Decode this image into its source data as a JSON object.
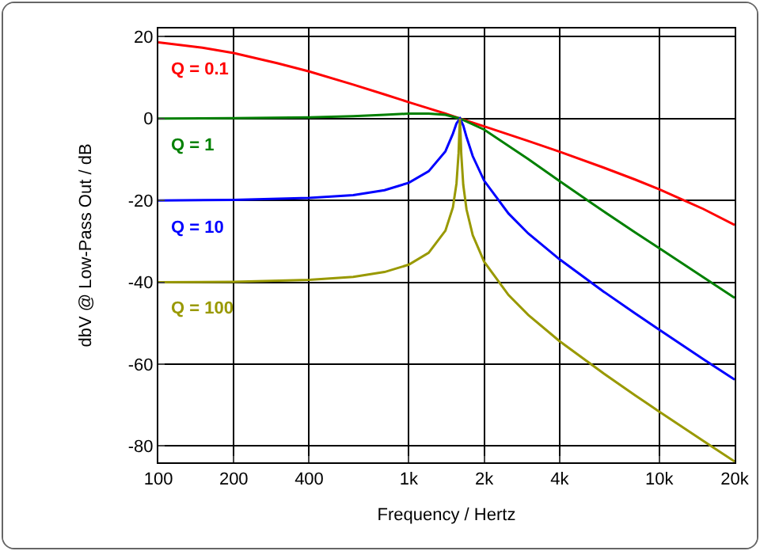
{
  "chart_data": {
    "type": "line",
    "xlabel": "Frequency / Hertz",
    "ylabel": "dbV @ Low-Pass Out / dB",
    "log": "x",
    "xlim": [
      100,
      20000
    ],
    "xticks": [
      100,
      200,
      400,
      {
        "value": 1000,
        "label": "1k"
      },
      {
        "value": 2000,
        "label": "2k"
      },
      {
        "value": 4000,
        "label": "4k"
      },
      {
        "value": 10000,
        "label": "10k"
      },
      {
        "value": 20000,
        "label": "20k"
      }
    ],
    "ylim": [
      -84,
      22
    ],
    "yticks": [
      -80,
      -60,
      -40,
      -20,
      0,
      20
    ],
    "grid": true,
    "legend": false,
    "marker": "none",
    "line_style": "solid",
    "series": [
      {
        "name": "Q = 0.1",
        "color": "#ff0000",
        "x": [
          100,
          150,
          200,
          300,
          400,
          600,
          800,
          1000,
          1200,
          1400,
          1600,
          2000,
          3000,
          4000,
          6000,
          8000,
          10000,
          15000,
          20000
        ],
        "values": [
          18.6,
          17.3,
          16.0,
          13.5,
          11.5,
          8.3,
          5.9,
          4.0,
          2.5,
          1.2,
          0,
          -1.9,
          -5.5,
          -8.1,
          -12.0,
          -14.9,
          -17.3,
          -22.1,
          -26.0
        ]
      },
      {
        "name": "Q = 1",
        "color": "#008000",
        "x": [
          100,
          200,
          400,
          600,
          800,
          1000,
          1200,
          1400,
          1600,
          2000,
          3000,
          4000,
          6000,
          8000,
          10000,
          15000,
          20000
        ],
        "values": [
          0.0,
          0.1,
          0.3,
          0.6,
          0.9,
          1.2,
          1.2,
          0.9,
          0,
          -2.7,
          -9.9,
          -15.3,
          -22.7,
          -27.8,
          -31.7,
          -38.8,
          -43.8
        ]
      },
      {
        "name": "Q = 10",
        "color": "#0000ff",
        "x": [
          100,
          200,
          400,
          600,
          800,
          1000,
          1200,
          1400,
          1500,
          1550,
          1600,
          1650,
          1700,
          1800,
          2000,
          2500,
          3000,
          4000,
          6000,
          8000,
          10000,
          15000,
          20000
        ],
        "values": [
          -20.0,
          -19.9,
          -19.4,
          -18.7,
          -17.5,
          -15.7,
          -12.9,
          -8.0,
          -3.7,
          -1.2,
          0,
          -1.7,
          -4.5,
          -9.2,
          -15.2,
          -23.2,
          -28.1,
          -34.4,
          -42.3,
          -47.6,
          -51.6,
          -58.8,
          -63.8
        ]
      },
      {
        "name": "Q = 100",
        "color": "#999900",
        "x": [
          100,
          200,
          400,
          600,
          800,
          1000,
          1200,
          1400,
          1500,
          1550,
          1580,
          1590,
          1600,
          1610,
          1620,
          1650,
          1700,
          1800,
          2000,
          2500,
          3000,
          4000,
          6000,
          8000,
          10000,
          15000,
          20000
        ],
        "values": [
          -40.0,
          -39.9,
          -39.4,
          -38.7,
          -37.5,
          -35.7,
          -32.8,
          -27.4,
          -21.7,
          -15.9,
          -8.5,
          -4.0,
          0,
          -4.1,
          -8.7,
          -16.2,
          -22.2,
          -28.5,
          -35.0,
          -43.1,
          -48.0,
          -54.4,
          -62.3,
          -67.6,
          -71.6,
          -78.8,
          -83.8
        ]
      }
    ]
  }
}
